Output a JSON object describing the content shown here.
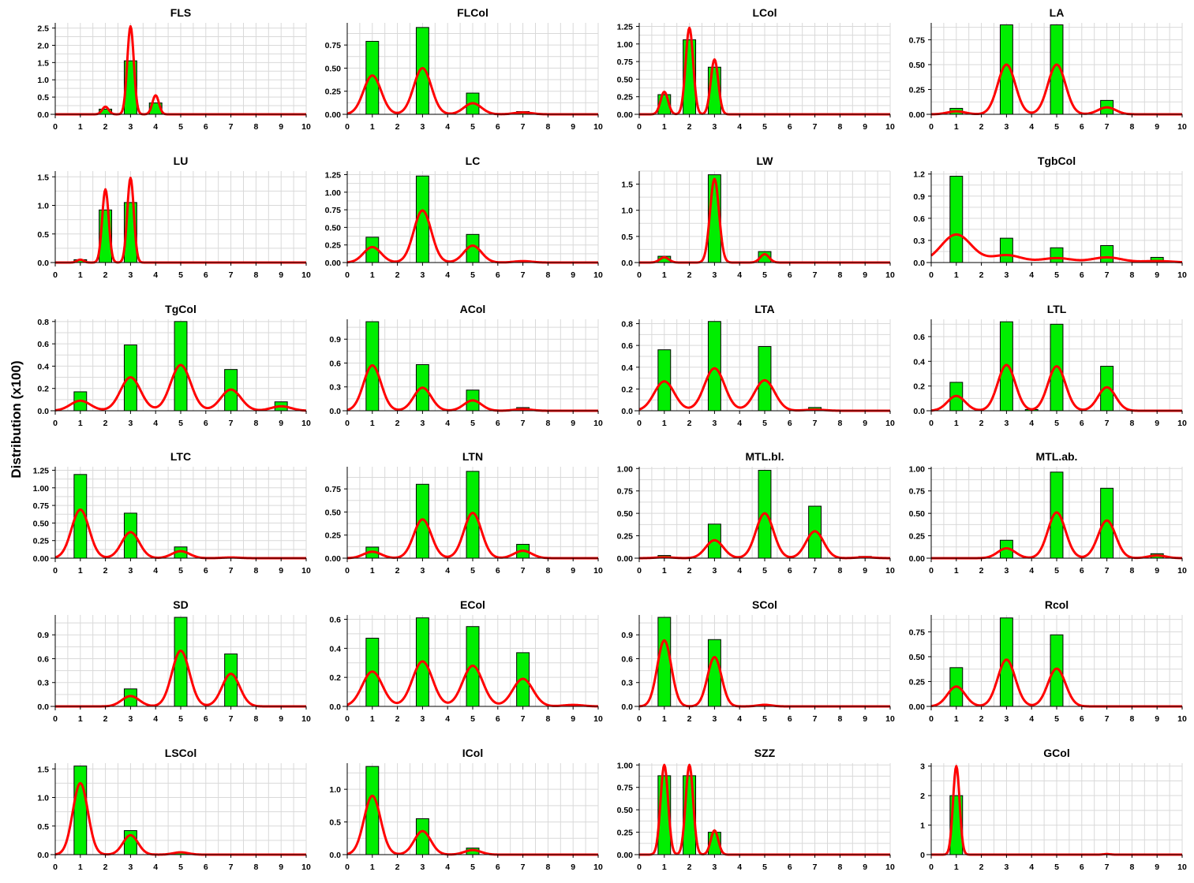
{
  "ylabel": "Distribution (x100)",
  "x_ticks": [
    "0",
    "1",
    "2",
    "3",
    "4",
    "5",
    "6",
    "7",
    "8",
    "9",
    "10"
  ],
  "colors": {
    "bar": "#00ee00",
    "curve": "#ff0000",
    "grid": "#d9d9d9"
  },
  "chart_data": [
    {
      "type": "bar",
      "title": "FLS",
      "xlim": [
        0,
        10
      ],
      "ylim": [
        0,
        2.65
      ],
      "yticks": [
        "0.0",
        "0.5",
        "1.0",
        "1.5",
        "2.0",
        "2.5"
      ],
      "bars": [
        {
          "x": 2,
          "y": 0.15
        },
        {
          "x": 3,
          "y": 1.55
        },
        {
          "x": 4,
          "y": 0.33
        }
      ],
      "density": [
        {
          "mu": 2,
          "sd": 0.13,
          "h": 0.22
        },
        {
          "mu": 3,
          "sd": 0.13,
          "h": 2.55
        },
        {
          "mu": 4,
          "sd": 0.13,
          "h": 0.55
        }
      ]
    },
    {
      "type": "bar",
      "title": "FLCol",
      "xlim": [
        0,
        10
      ],
      "ylim": [
        0,
        0.99
      ],
      "yticks": [
        "0.00",
        "0.25",
        "0.50",
        "0.75"
      ],
      "bars": [
        {
          "x": 1,
          "y": 0.79
        },
        {
          "x": 3,
          "y": 0.94
        },
        {
          "x": 5,
          "y": 0.23
        },
        {
          "x": 7,
          "y": 0.03
        }
      ],
      "density": [
        {
          "mu": 1,
          "sd": 0.35,
          "h": 0.42
        },
        {
          "mu": 3,
          "sd": 0.35,
          "h": 0.5
        },
        {
          "mu": 5,
          "sd": 0.35,
          "h": 0.12
        },
        {
          "mu": 7,
          "sd": 0.35,
          "h": 0.02
        }
      ]
    },
    {
      "type": "bar",
      "title": "LCol",
      "xlim": [
        0,
        10
      ],
      "ylim": [
        0,
        1.3
      ],
      "yticks": [
        "0.00",
        "0.25",
        "0.50",
        "0.75",
        "1.00",
        "1.25"
      ],
      "bars": [
        {
          "x": 1,
          "y": 0.28
        },
        {
          "x": 2,
          "y": 1.06
        },
        {
          "x": 3,
          "y": 0.67
        }
      ],
      "density": [
        {
          "mu": 1,
          "sd": 0.15,
          "h": 0.32
        },
        {
          "mu": 2,
          "sd": 0.15,
          "h": 1.23
        },
        {
          "mu": 3,
          "sd": 0.15,
          "h": 0.78
        }
      ]
    },
    {
      "type": "bar",
      "title": "LA",
      "xlim": [
        0,
        10
      ],
      "ylim": [
        0,
        0.92
      ],
      "yticks": [
        "0.00",
        "0.25",
        "0.50",
        "0.75"
      ],
      "bars": [
        {
          "x": 1,
          "y": 0.06
        },
        {
          "x": 3,
          "y": 0.9
        },
        {
          "x": 5,
          "y": 0.9
        },
        {
          "x": 7,
          "y": 0.14
        }
      ],
      "density": [
        {
          "mu": 1,
          "sd": 0.35,
          "h": 0.03
        },
        {
          "mu": 3,
          "sd": 0.35,
          "h": 0.5
        },
        {
          "mu": 5,
          "sd": 0.35,
          "h": 0.5
        },
        {
          "mu": 7,
          "sd": 0.35,
          "h": 0.07
        }
      ]
    },
    {
      "type": "bar",
      "title": "LU",
      "xlim": [
        0,
        10
      ],
      "ylim": [
        0,
        1.6
      ],
      "yticks": [
        "0.0",
        "0.5",
        "1.0",
        "1.5"
      ],
      "bars": [
        {
          "x": 1,
          "y": 0.05
        },
        {
          "x": 2,
          "y": 0.92
        },
        {
          "x": 3,
          "y": 1.05
        }
      ],
      "density": [
        {
          "mu": 1,
          "sd": 0.13,
          "h": 0.05
        },
        {
          "mu": 2,
          "sd": 0.13,
          "h": 1.28
        },
        {
          "mu": 3,
          "sd": 0.13,
          "h": 1.48
        }
      ]
    },
    {
      "type": "bar",
      "title": "LC",
      "xlim": [
        0,
        10
      ],
      "ylim": [
        0,
        1.3
      ],
      "yticks": [
        "0.00",
        "0.25",
        "0.50",
        "0.75",
        "1.00",
        "1.25"
      ],
      "bars": [
        {
          "x": 1,
          "y": 0.36
        },
        {
          "x": 3,
          "y": 1.23
        },
        {
          "x": 5,
          "y": 0.4
        }
      ],
      "density": [
        {
          "mu": 1,
          "sd": 0.35,
          "h": 0.22
        },
        {
          "mu": 3,
          "sd": 0.35,
          "h": 0.74
        },
        {
          "mu": 5,
          "sd": 0.35,
          "h": 0.24
        },
        {
          "mu": 7,
          "sd": 0.35,
          "h": 0.02
        }
      ]
    },
    {
      "type": "bar",
      "title": "LW",
      "xlim": [
        0,
        10
      ],
      "ylim": [
        0,
        1.75
      ],
      "yticks": [
        "0.0",
        "0.5",
        "1.0",
        "1.5"
      ],
      "bars": [
        {
          "x": 1,
          "y": 0.12
        },
        {
          "x": 3,
          "y": 1.68
        },
        {
          "x": 5,
          "y": 0.21
        }
      ],
      "density": [
        {
          "mu": 1,
          "sd": 0.18,
          "h": 0.1
        },
        {
          "mu": 3,
          "sd": 0.18,
          "h": 1.6
        },
        {
          "mu": 5,
          "sd": 0.18,
          "h": 0.16
        }
      ]
    },
    {
      "type": "bar",
      "title": "TgbCol",
      "xlim": [
        0,
        10
      ],
      "ylim": [
        0,
        1.24
      ],
      "yticks": [
        "0.0",
        "0.3",
        "0.6",
        "0.9",
        "1.2"
      ],
      "bars": [
        {
          "x": 1,
          "y": 1.17
        },
        {
          "x": 3,
          "y": 0.33
        },
        {
          "x": 5,
          "y": 0.2
        },
        {
          "x": 7,
          "y": 0.23
        },
        {
          "x": 9,
          "y": 0.07
        }
      ],
      "density": [
        {
          "mu": 1,
          "sd": 0.6,
          "h": 0.38
        },
        {
          "mu": 3,
          "sd": 0.6,
          "h": 0.1
        },
        {
          "mu": 5,
          "sd": 0.6,
          "h": 0.06
        },
        {
          "mu": 7,
          "sd": 0.6,
          "h": 0.07
        },
        {
          "mu": 9,
          "sd": 0.6,
          "h": 0.02
        }
      ]
    },
    {
      "type": "bar",
      "title": "TgCol",
      "xlim": [
        0,
        10
      ],
      "ylim": [
        0,
        0.82
      ],
      "yticks": [
        "0.0",
        "0.2",
        "0.4",
        "0.6",
        "0.8"
      ],
      "bars": [
        {
          "x": 1,
          "y": 0.17
        },
        {
          "x": 3,
          "y": 0.59
        },
        {
          "x": 5,
          "y": 0.8
        },
        {
          "x": 7,
          "y": 0.37
        },
        {
          "x": 9,
          "y": 0.08
        }
      ],
      "density": [
        {
          "mu": 1,
          "sd": 0.4,
          "h": 0.09
        },
        {
          "mu": 3,
          "sd": 0.4,
          "h": 0.3
        },
        {
          "mu": 5,
          "sd": 0.4,
          "h": 0.41
        },
        {
          "mu": 7,
          "sd": 0.4,
          "h": 0.19
        },
        {
          "mu": 9,
          "sd": 0.4,
          "h": 0.04
        }
      ]
    },
    {
      "type": "bar",
      "title": "ACol",
      "xlim": [
        0,
        10
      ],
      "ylim": [
        0,
        1.15
      ],
      "yticks": [
        "0.0",
        "0.3",
        "0.6",
        "0.9"
      ],
      "bars": [
        {
          "x": 1,
          "y": 1.12
        },
        {
          "x": 3,
          "y": 0.58
        },
        {
          "x": 5,
          "y": 0.26
        },
        {
          "x": 7,
          "y": 0.04
        }
      ],
      "density": [
        {
          "mu": 1,
          "sd": 0.35,
          "h": 0.57
        },
        {
          "mu": 3,
          "sd": 0.35,
          "h": 0.29
        },
        {
          "mu": 5,
          "sd": 0.35,
          "h": 0.13
        },
        {
          "mu": 7,
          "sd": 0.35,
          "h": 0.02
        }
      ]
    },
    {
      "type": "bar",
      "title": "LTA",
      "xlim": [
        0,
        10
      ],
      "ylim": [
        0,
        0.84
      ],
      "yticks": [
        "0.0",
        "0.2",
        "0.4",
        "0.6",
        "0.8"
      ],
      "bars": [
        {
          "x": 1,
          "y": 0.56
        },
        {
          "x": 3,
          "y": 0.82
        },
        {
          "x": 5,
          "y": 0.59
        },
        {
          "x": 7,
          "y": 0.03
        }
      ],
      "density": [
        {
          "mu": 1,
          "sd": 0.4,
          "h": 0.27
        },
        {
          "mu": 3,
          "sd": 0.4,
          "h": 0.39
        },
        {
          "mu": 5,
          "sd": 0.4,
          "h": 0.28
        },
        {
          "mu": 7,
          "sd": 0.4,
          "h": 0.01
        }
      ]
    },
    {
      "type": "bar",
      "title": "LTL",
      "xlim": [
        0,
        10
      ],
      "ylim": [
        0,
        0.74
      ],
      "yticks": [
        "0.0",
        "0.2",
        "0.4",
        "0.6"
      ],
      "bars": [
        {
          "x": 1,
          "y": 0.23
        },
        {
          "x": 3,
          "y": 0.72
        },
        {
          "x": 4,
          "y": 0.01
        },
        {
          "x": 5,
          "y": 0.7
        },
        {
          "x": 7,
          "y": 0.36
        }
      ],
      "density": [
        {
          "mu": 1,
          "sd": 0.35,
          "h": 0.12
        },
        {
          "mu": 3,
          "sd": 0.35,
          "h": 0.37
        },
        {
          "mu": 5,
          "sd": 0.35,
          "h": 0.36
        },
        {
          "mu": 7,
          "sd": 0.35,
          "h": 0.19
        }
      ]
    },
    {
      "type": "bar",
      "title": "LTC",
      "xlim": [
        0,
        10
      ],
      "ylim": [
        0,
        1.3
      ],
      "yticks": [
        "0.00",
        "0.25",
        "0.50",
        "0.75",
        "1.00",
        "1.25"
      ],
      "bars": [
        {
          "x": 1,
          "y": 1.19
        },
        {
          "x": 3,
          "y": 0.64
        },
        {
          "x": 5,
          "y": 0.16
        }
      ],
      "density": [
        {
          "mu": 1,
          "sd": 0.35,
          "h": 0.69
        },
        {
          "mu": 3,
          "sd": 0.35,
          "h": 0.37
        },
        {
          "mu": 5,
          "sd": 0.35,
          "h": 0.1
        },
        {
          "mu": 7,
          "sd": 0.35,
          "h": 0.01
        }
      ]
    },
    {
      "type": "bar",
      "title": "LTN",
      "xlim": [
        0,
        10
      ],
      "ylim": [
        0,
        0.99
      ],
      "yticks": [
        "0.00",
        "0.25",
        "0.50",
        "0.75"
      ],
      "bars": [
        {
          "x": 1,
          "y": 0.12
        },
        {
          "x": 3,
          "y": 0.8
        },
        {
          "x": 5,
          "y": 0.94
        },
        {
          "x": 7,
          "y": 0.15
        }
      ],
      "density": [
        {
          "mu": 1,
          "sd": 0.35,
          "h": 0.07
        },
        {
          "mu": 3,
          "sd": 0.35,
          "h": 0.42
        },
        {
          "mu": 5,
          "sd": 0.35,
          "h": 0.49
        },
        {
          "mu": 7,
          "sd": 0.35,
          "h": 0.08
        }
      ]
    },
    {
      "type": "bar",
      "title": "MTL.bl.",
      "xlim": [
        0,
        10
      ],
      "ylim": [
        0,
        1.02
      ],
      "yticks": [
        "0.00",
        "0.25",
        "0.50",
        "0.75",
        "1.00"
      ],
      "bars": [
        {
          "x": 1,
          "y": 0.03
        },
        {
          "x": 3,
          "y": 0.38
        },
        {
          "x": 5,
          "y": 0.98
        },
        {
          "x": 7,
          "y": 0.58
        },
        {
          "x": 9,
          "y": 0.02
        }
      ],
      "density": [
        {
          "mu": 1,
          "sd": 0.35,
          "h": 0.01
        },
        {
          "mu": 3,
          "sd": 0.35,
          "h": 0.2
        },
        {
          "mu": 5,
          "sd": 0.35,
          "h": 0.5
        },
        {
          "mu": 7,
          "sd": 0.35,
          "h": 0.3
        },
        {
          "mu": 9,
          "sd": 0.35,
          "h": 0.01
        }
      ]
    },
    {
      "type": "bar",
      "title": "MTL.ab.",
      "xlim": [
        0,
        10
      ],
      "ylim": [
        0,
        1.02
      ],
      "yticks": [
        "0.00",
        "0.25",
        "0.50",
        "0.75",
        "1.00"
      ],
      "bars": [
        {
          "x": 3,
          "y": 0.2
        },
        {
          "x": 5,
          "y": 0.96
        },
        {
          "x": 7,
          "y": 0.78
        },
        {
          "x": 9,
          "y": 0.05
        }
      ],
      "density": [
        {
          "mu": 3,
          "sd": 0.35,
          "h": 0.11
        },
        {
          "mu": 5,
          "sd": 0.35,
          "h": 0.51
        },
        {
          "mu": 7,
          "sd": 0.35,
          "h": 0.42
        },
        {
          "mu": 9,
          "sd": 0.35,
          "h": 0.03
        }
      ]
    },
    {
      "type": "bar",
      "title": "SD",
      "xlim": [
        0,
        10
      ],
      "ylim": [
        0,
        1.15
      ],
      "yticks": [
        "0.0",
        "0.3",
        "0.6",
        "0.9"
      ],
      "bars": [
        {
          "x": 3,
          "y": 0.22
        },
        {
          "x": 5,
          "y": 1.12
        },
        {
          "x": 7,
          "y": 0.66
        }
      ],
      "density": [
        {
          "mu": 3,
          "sd": 0.35,
          "h": 0.13
        },
        {
          "mu": 5,
          "sd": 0.35,
          "h": 0.7
        },
        {
          "mu": 7,
          "sd": 0.35,
          "h": 0.41
        }
      ]
    },
    {
      "type": "bar",
      "title": "ECol",
      "xlim": [
        0,
        10
      ],
      "ylim": [
        0,
        0.63
      ],
      "yticks": [
        "0.0",
        "0.2",
        "0.4",
        "0.6"
      ],
      "bars": [
        {
          "x": 1,
          "y": 0.47
        },
        {
          "x": 3,
          "y": 0.61
        },
        {
          "x": 5,
          "y": 0.55
        },
        {
          "x": 7,
          "y": 0.37
        }
      ],
      "density": [
        {
          "mu": 1,
          "sd": 0.4,
          "h": 0.24
        },
        {
          "mu": 3,
          "sd": 0.4,
          "h": 0.31
        },
        {
          "mu": 5,
          "sd": 0.4,
          "h": 0.28
        },
        {
          "mu": 7,
          "sd": 0.4,
          "h": 0.19
        },
        {
          "mu": 9,
          "sd": 0.4,
          "h": 0.01
        }
      ]
    },
    {
      "type": "bar",
      "title": "SCol",
      "xlim": [
        0,
        10
      ],
      "ylim": [
        0,
        1.15
      ],
      "yticks": [
        "0.0",
        "0.3",
        "0.6",
        "0.9"
      ],
      "bars": [
        {
          "x": 1,
          "y": 1.12
        },
        {
          "x": 3,
          "y": 0.84
        },
        {
          "x": 5,
          "y": 0.02
        }
      ],
      "density": [
        {
          "mu": 1,
          "sd": 0.28,
          "h": 0.83
        },
        {
          "mu": 3,
          "sd": 0.28,
          "h": 0.62
        },
        {
          "mu": 5,
          "sd": 0.28,
          "h": 0.02
        }
      ]
    },
    {
      "type": "bar",
      "title": "Rcol",
      "xlim": [
        0,
        10
      ],
      "ylim": [
        0,
        0.92
      ],
      "yticks": [
        "0.00",
        "0.25",
        "0.50",
        "0.75"
      ],
      "bars": [
        {
          "x": 1,
          "y": 0.39
        },
        {
          "x": 3,
          "y": 0.89
        },
        {
          "x": 5,
          "y": 0.72
        }
      ],
      "density": [
        {
          "mu": 1,
          "sd": 0.35,
          "h": 0.2
        },
        {
          "mu": 3,
          "sd": 0.35,
          "h": 0.47
        },
        {
          "mu": 5,
          "sd": 0.35,
          "h": 0.38
        }
      ]
    },
    {
      "type": "bar",
      "title": "LSCol",
      "xlim": [
        0,
        10
      ],
      "ylim": [
        0,
        1.6
      ],
      "yticks": [
        "0.0",
        "0.5",
        "1.0",
        "1.5"
      ],
      "bars": [
        {
          "x": 1,
          "y": 1.55
        },
        {
          "x": 3,
          "y": 0.42
        },
        {
          "x": 5,
          "y": 0.03
        }
      ],
      "density": [
        {
          "mu": 1,
          "sd": 0.3,
          "h": 1.25
        },
        {
          "mu": 3,
          "sd": 0.3,
          "h": 0.34
        },
        {
          "mu": 5,
          "sd": 0.3,
          "h": 0.04
        }
      ]
    },
    {
      "type": "bar",
      "title": "ICol",
      "xlim": [
        0,
        10
      ],
      "ylim": [
        0,
        1.4
      ],
      "yticks": [
        "0.0",
        "0.5",
        "1.0"
      ],
      "bars": [
        {
          "x": 1,
          "y": 1.35
        },
        {
          "x": 3,
          "y": 0.55
        },
        {
          "x": 5,
          "y": 0.1
        }
      ],
      "density": [
        {
          "mu": 1,
          "sd": 0.33,
          "h": 0.9
        },
        {
          "mu": 3,
          "sd": 0.33,
          "h": 0.36
        },
        {
          "mu": 5,
          "sd": 0.33,
          "h": 0.07
        }
      ]
    },
    {
      "type": "bar",
      "title": "SZZ",
      "xlim": [
        0,
        10
      ],
      "ylim": [
        0,
        1.02
      ],
      "yticks": [
        "0.00",
        "0.25",
        "0.50",
        "0.75",
        "1.00"
      ],
      "bars": [
        {
          "x": 1,
          "y": 0.88
        },
        {
          "x": 2,
          "y": 0.88
        },
        {
          "x": 3,
          "y": 0.25
        }
      ],
      "density": [
        {
          "mu": 1,
          "sd": 0.15,
          "h": 1.0
        },
        {
          "mu": 2,
          "sd": 0.15,
          "h": 1.0
        },
        {
          "mu": 3,
          "sd": 0.15,
          "h": 0.27
        }
      ]
    },
    {
      "type": "bar",
      "title": "GCol",
      "xlim": [
        0,
        10
      ],
      "ylim": [
        0,
        3.1
      ],
      "yticks": [
        "0",
        "1",
        "2",
        "3"
      ],
      "bars": [
        {
          "x": 1,
          "y": 2.0
        }
      ],
      "density": [
        {
          "mu": 1,
          "sd": 0.13,
          "h": 3.0
        },
        {
          "mu": 7,
          "sd": 0.13,
          "h": 0.02
        }
      ]
    }
  ]
}
